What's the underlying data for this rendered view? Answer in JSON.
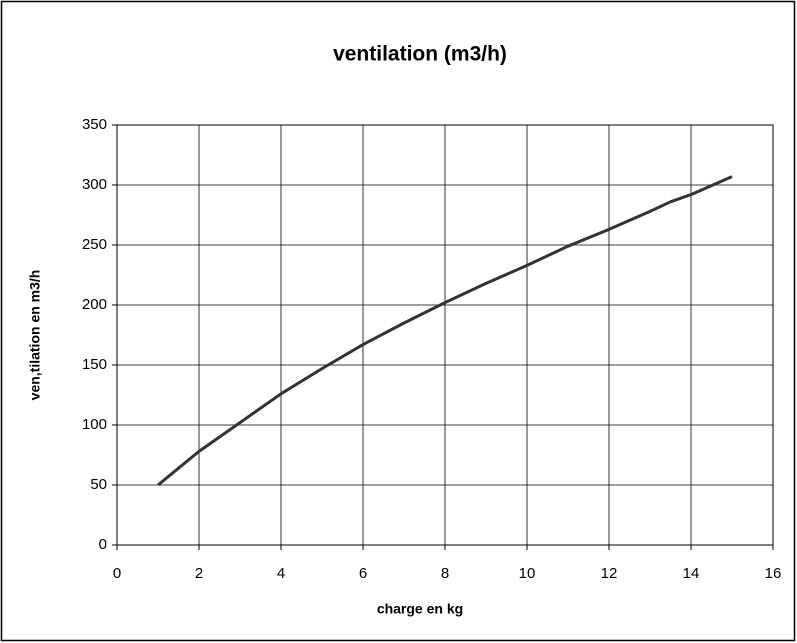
{
  "chart_data": {
    "type": "line",
    "title": "ventilation (m3/h)",
    "x_label": "charge en kg",
    "y_label": "ven,tilation en m3/h",
    "x": [
      1,
      1.5,
      2,
      2.5,
      3,
      4,
      5,
      6,
      7,
      8,
      9,
      10,
      11,
      12,
      13,
      13.5,
      14,
      15
    ],
    "values": [
      50,
      64,
      78,
      90,
      102,
      126,
      147,
      167,
      185,
      202,
      218,
      233,
      249,
      263,
      278,
      286,
      292,
      307
    ],
    "color": "#333333",
    "xlim": [
      0,
      16
    ],
    "xticks": [
      0,
      2,
      4,
      6,
      8,
      10,
      12,
      14,
      16
    ],
    "ylim": [
      0,
      350
    ],
    "yticks": [
      0,
      50,
      100,
      150,
      200,
      250,
      300,
      350
    ],
    "grid": true
  }
}
